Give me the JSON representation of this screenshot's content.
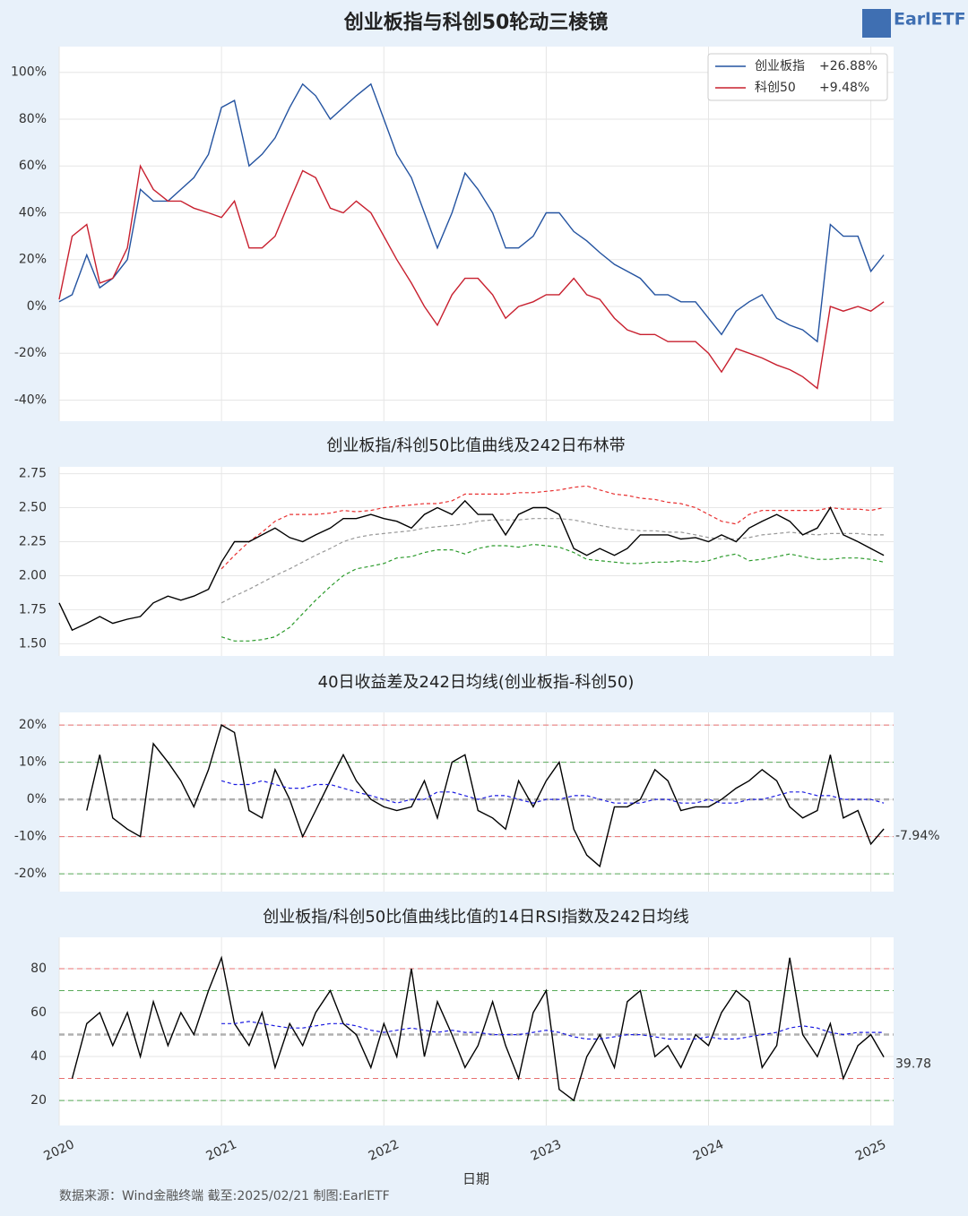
{
  "title": "创业板指与科创50轮动三棱镜",
  "logo": "EarlETF",
  "x_label": "日期",
  "footer": "数据来源：Wind金融终端 截至:2025/02/21 制图:EarlETF",
  "chart_data": [
    {
      "type": "line",
      "xlim": [
        2020,
        2025.14
      ],
      "ylim": [
        -49,
        111
      ],
      "xticks": [
        2020,
        2021,
        2022,
        2023,
        2024,
        2025
      ],
      "yticks": [
        {
          "value": 100,
          "label": "100%"
        },
        {
          "value": 80,
          "label": "80%"
        },
        {
          "value": 60,
          "label": "60%"
        },
        {
          "value": 40,
          "label": "40%"
        },
        {
          "value": 20,
          "label": "20%"
        },
        {
          "value": 0,
          "label": "0%"
        },
        {
          "value": -20,
          "label": "-20%"
        },
        {
          "value": -40,
          "label": "-40%"
        }
      ],
      "grid": true,
      "legend": "upper right",
      "x": [
        2020,
        2020.08,
        2020.17,
        2020.25,
        2020.33,
        2020.42,
        2020.5,
        2020.58,
        2020.67,
        2020.75,
        2020.83,
        2020.92,
        2021,
        2021.08,
        2021.17,
        2021.25,
        2021.33,
        2021.42,
        2021.5,
        2021.58,
        2021.67,
        2021.75,
        2021.83,
        2021.92,
        2022,
        2022.08,
        2022.17,
        2022.25,
        2022.33,
        2022.42,
        2022.5,
        2022.58,
        2022.67,
        2022.75,
        2022.83,
        2022.92,
        2023,
        2023.08,
        2023.17,
        2023.25,
        2023.33,
        2023.42,
        2023.5,
        2023.58,
        2023.67,
        2023.75,
        2023.83,
        2023.92,
        2024,
        2024.08,
        2024.17,
        2024.25,
        2024.33,
        2024.42,
        2024.5,
        2024.58,
        2024.67,
        2024.75,
        2024.83,
        2024.92,
        2025,
        2025.08
      ],
      "series": [
        {
          "name": "创业板指",
          "change_label": "+26.88%",
          "color": "#2453a0",
          "values": [
            2,
            5,
            22,
            8,
            12,
            20,
            50,
            45,
            45,
            50,
            55,
            65,
            85,
            88,
            60,
            65,
            72,
            85,
            95,
            90,
            80,
            85,
            90,
            95,
            80,
            65,
            55,
            40,
            25,
            40,
            57,
            50,
            40,
            25,
            25,
            30,
            40,
            40,
            32,
            28,
            23,
            18,
            15,
            12,
            5,
            5,
            2,
            2,
            -5,
            -12,
            -2,
            2,
            5,
            -5,
            -8,
            -10,
            -15,
            35,
            30,
            30,
            15,
            22
          ]
        },
        {
          "name": "科创50",
          "change_label": "+9.48%",
          "color": "#c8202f",
          "values": [
            3,
            30,
            35,
            10,
            12,
            25,
            60,
            50,
            45,
            45,
            42,
            40,
            38,
            45,
            25,
            25,
            30,
            45,
            58,
            55,
            42,
            40,
            45,
            40,
            30,
            20,
            10,
            0,
            -8,
            5,
            12,
            12,
            5,
            -5,
            0,
            2,
            5,
            5,
            12,
            5,
            3,
            -5,
            -10,
            -12,
            -12,
            -15,
            -15,
            -15,
            -20,
            -28,
            -18,
            -20,
            -22,
            -25,
            -27,
            -30,
            -35,
            0,
            -2,
            0,
            -2,
            2
          ]
        }
      ]
    },
    {
      "type": "line",
      "title": "创业板指/科创50比值曲线及242日布林带",
      "xlim": [
        2020,
        2025.14
      ],
      "ylim": [
        1.41,
        2.8
      ],
      "xticks": [
        2020,
        2021,
        2022,
        2023,
        2024,
        2025
      ],
      "yticks": [
        2.75,
        {
          "value": 2.5,
          "label": "2.50"
        },
        2.25,
        {
          "value": 2,
          "label": "2.00"
        },
        1.75,
        {
          "value": 1.5,
          "label": "1.50"
        }
      ],
      "grid": true,
      "x": [
        2020,
        2020.08,
        2020.17,
        2020.25,
        2020.33,
        2020.42,
        2020.5,
        2020.58,
        2020.67,
        2020.75,
        2020.83,
        2020.92,
        2021,
        2021.08,
        2021.17,
        2021.25,
        2021.33,
        2021.42,
        2021.5,
        2021.58,
        2021.67,
        2021.75,
        2021.83,
        2021.92,
        2022,
        2022.08,
        2022.17,
        2022.25,
        2022.33,
        2022.42,
        2022.5,
        2022.58,
        2022.67,
        2022.75,
        2022.83,
        2022.92,
        2023,
        2023.08,
        2023.17,
        2023.25,
        2023.33,
        2023.42,
        2023.5,
        2023.58,
        2023.67,
        2023.75,
        2023.83,
        2023.92,
        2024,
        2024.08,
        2024.17,
        2024.25,
        2024.33,
        2024.42,
        2024.5,
        2024.58,
        2024.67,
        2024.75,
        2024.83,
        2024.92,
        2025,
        2025.08
      ],
      "series": [
        {
          "color": "#e83030",
          "dashed": true,
          "values": [
            null,
            null,
            null,
            null,
            null,
            null,
            null,
            null,
            null,
            null,
            null,
            null,
            2.05,
            2.15,
            2.25,
            2.32,
            2.4,
            2.45,
            2.45,
            2.45,
            2.46,
            2.48,
            2.47,
            2.48,
            2.5,
            2.51,
            2.52,
            2.53,
            2.53,
            2.55,
            2.6,
            2.6,
            2.6,
            2.6,
            2.61,
            2.61,
            2.62,
            2.63,
            2.65,
            2.66,
            2.63,
            2.6,
            2.59,
            2.57,
            2.56,
            2.54,
            2.53,
            2.5,
            2.45,
            2.4,
            2.38,
            2.45,
            2.48,
            2.48,
            2.48,
            2.48,
            2.48,
            2.5,
            2.49,
            2.49,
            2.48,
            2.5
          ]
        },
        {
          "color": "#999999",
          "dashed": true,
          "values": [
            null,
            null,
            null,
            null,
            null,
            null,
            null,
            null,
            null,
            null,
            null,
            null,
            1.8,
            1.85,
            1.9,
            1.95,
            2,
            2.05,
            2.1,
            2.15,
            2.2,
            2.25,
            2.28,
            2.3,
            2.31,
            2.32,
            2.33,
            2.35,
            2.36,
            2.37,
            2.38,
            2.4,
            2.41,
            2.41,
            2.41,
            2.42,
            2.42,
            2.42,
            2.41,
            2.39,
            2.37,
            2.35,
            2.34,
            2.33,
            2.33,
            2.32,
            2.32,
            2.3,
            2.28,
            2.27,
            2.27,
            2.28,
            2.3,
            2.31,
            2.32,
            2.31,
            2.3,
            2.31,
            2.31,
            2.31,
            2.3,
            2.3
          ]
        },
        {
          "color": "#2a9a2a",
          "dashed": true,
          "values": [
            null,
            null,
            null,
            null,
            null,
            null,
            null,
            null,
            null,
            null,
            null,
            null,
            1.55,
            1.52,
            1.52,
            1.53,
            1.55,
            1.62,
            1.72,
            1.82,
            1.92,
            2,
            2.05,
            2.07,
            2.09,
            2.13,
            2.14,
            2.17,
            2.19,
            2.19,
            2.16,
            2.2,
            2.22,
            2.22,
            2.21,
            2.23,
            2.22,
            2.21,
            2.17,
            2.12,
            2.11,
            2.1,
            2.09,
            2.09,
            2.1,
            2.1,
            2.11,
            2.1,
            2.11,
            2.14,
            2.16,
            2.11,
            2.12,
            2.14,
            2.16,
            2.14,
            2.12,
            2.12,
            2.13,
            2.13,
            2.12,
            2.1
          ]
        },
        {
          "color": "#000000",
          "values": [
            1.8,
            1.6,
            1.65,
            1.7,
            1.65,
            1.68,
            1.7,
            1.8,
            1.85,
            1.82,
            1.85,
            1.9,
            2.1,
            2.25,
            2.25,
            2.3,
            2.35,
            2.28,
            2.25,
            2.3,
            2.35,
            2.42,
            2.42,
            2.45,
            2.42,
            2.4,
            2.35,
            2.45,
            2.5,
            2.45,
            2.55,
            2.45,
            2.45,
            2.3,
            2.45,
            2.5,
            2.5,
            2.45,
            2.2,
            2.15,
            2.2,
            2.15,
            2.2,
            2.3,
            2.3,
            2.3,
            2.27,
            2.28,
            2.25,
            2.3,
            2.25,
            2.35,
            2.4,
            2.45,
            2.4,
            2.3,
            2.35,
            2.5,
            2.3,
            2.25,
            2.2,
            2.15
          ]
        }
      ]
    },
    {
      "type": "line",
      "title": "40日收益差及242日均线(创业板指-科创50)",
      "xlim": [
        2020,
        2025.14
      ],
      "ylim": [
        -24.8,
        23.4
      ],
      "xticks": [
        2020,
        2021,
        2022,
        2023,
        2024,
        2025
      ],
      "yticks": [
        {
          "value": 20,
          "label": "20%"
        },
        {
          "value": 10,
          "label": "10%"
        },
        {
          "value": 0,
          "label": "0%"
        },
        {
          "value": -10,
          "label": "-10%"
        },
        {
          "value": -20,
          "label": "-20%"
        }
      ],
      "grid": true,
      "end_label": "-7.94%",
      "reference_lines": [
        {
          "value": 20,
          "color": "#e87070"
        },
        {
          "value": 10,
          "color": "#5aaa5a"
        },
        {
          "value": 0,
          "color": "#b0b0b0",
          "width": 2.5
        },
        {
          "value": -10,
          "color": "#e87070"
        },
        {
          "value": -20,
          "color": "#5aaa5a"
        }
      ],
      "x": [
        2020,
        2020.08,
        2020.17,
        2020.25,
        2020.33,
        2020.42,
        2020.5,
        2020.58,
        2020.67,
        2020.75,
        2020.83,
        2020.92,
        2021,
        2021.08,
        2021.17,
        2021.25,
        2021.33,
        2021.42,
        2021.5,
        2021.58,
        2021.67,
        2021.75,
        2021.83,
        2021.92,
        2022,
        2022.08,
        2022.17,
        2022.25,
        2022.33,
        2022.42,
        2022.5,
        2022.58,
        2022.67,
        2022.75,
        2022.83,
        2022.92,
        2023,
        2023.08,
        2023.17,
        2023.25,
        2023.33,
        2023.42,
        2023.5,
        2023.58,
        2023.67,
        2023.75,
        2023.83,
        2023.92,
        2024,
        2024.08,
        2024.17,
        2024.25,
        2024.33,
        2024.42,
        2024.5,
        2024.58,
        2024.67,
        2024.75,
        2024.83,
        2024.92,
        2025,
        2025.08
      ],
      "series": [
        {
          "color": "#000000",
          "values": [
            null,
            null,
            -3,
            12,
            -5,
            -8,
            -10,
            15,
            10,
            5,
            -2,
            8,
            20,
            18,
            -3,
            -5,
            8,
            0,
            -10,
            -3,
            5,
            12,
            5,
            0,
            -2,
            -3,
            -2,
            5,
            -5,
            10,
            12,
            -3,
            -5,
            -8,
            5,
            -2,
            5,
            10,
            -8,
            -15,
            -18,
            -2,
            -2,
            0,
            8,
            5,
            -3,
            -2,
            -2,
            0,
            3,
            5,
            8,
            5,
            -2,
            -5,
            -3,
            12,
            -5,
            -3,
            -12,
            -7.94
          ]
        },
        {
          "color": "#1a1ae0",
          "dashed": true,
          "values": [
            null,
            null,
            null,
            null,
            null,
            null,
            null,
            null,
            null,
            null,
            null,
            null,
            5,
            4,
            4,
            5,
            4,
            3,
            3,
            4,
            4,
            3,
            2,
            1,
            0,
            -1,
            0,
            0,
            2,
            2,
            1,
            0,
            1,
            1,
            0,
            -1,
            0,
            0,
            1,
            1,
            0,
            -1,
            -1,
            -1,
            0,
            0,
            -1,
            -1,
            0,
            -1,
            -1,
            0,
            0,
            1,
            2,
            2,
            1,
            1,
            0,
            0,
            0,
            -1
          ]
        }
      ]
    },
    {
      "type": "line",
      "title": "创业板指/科创50比值曲线比值的14日RSI指数及242日均线",
      "xlim": [
        2020,
        2025.14
      ],
      "ylim": [
        8.6,
        94.3
      ],
      "xticks": [
        2020,
        2021,
        2022,
        2023,
        2024,
        2025
      ],
      "yticks": [
        80,
        60,
        40,
        20
      ],
      "grid": true,
      "show_x_labels": true,
      "end_label": "39.78",
      "reference_lines": [
        {
          "value": 80,
          "color": "#e87070"
        },
        {
          "value": 70,
          "color": "#5aaa5a"
        },
        {
          "value": 50,
          "color": "#b0b0b0",
          "width": 2.5
        },
        {
          "value": 30,
          "color": "#e87070"
        },
        {
          "value": 20,
          "color": "#5aaa5a"
        }
      ],
      "x": [
        2020,
        2020.08,
        2020.17,
        2020.25,
        2020.33,
        2020.42,
        2020.5,
        2020.58,
        2020.67,
        2020.75,
        2020.83,
        2020.92,
        2021,
        2021.08,
        2021.17,
        2021.25,
        2021.33,
        2021.42,
        2021.5,
        2021.58,
        2021.67,
        2021.75,
        2021.83,
        2021.92,
        2022,
        2022.08,
        2022.17,
        2022.25,
        2022.33,
        2022.42,
        2022.5,
        2022.58,
        2022.67,
        2022.75,
        2022.83,
        2022.92,
        2023,
        2023.08,
        2023.17,
        2023.25,
        2023.33,
        2023.42,
        2023.5,
        2023.58,
        2023.67,
        2023.75,
        2023.83,
        2023.92,
        2024,
        2024.08,
        2024.17,
        2024.25,
        2024.33,
        2024.42,
        2024.5,
        2024.58,
        2024.67,
        2024.75,
        2024.83,
        2024.92,
        2025,
        2025.08
      ],
      "series": [
        {
          "color": "#000000",
          "values": [
            null,
            30,
            55,
            60,
            45,
            60,
            40,
            65,
            45,
            60,
            50,
            70,
            85,
            55,
            45,
            60,
            35,
            55,
            45,
            60,
            70,
            55,
            50,
            35,
            55,
            40,
            80,
            40,
            65,
            50,
            35,
            45,
            65,
            45,
            30,
            60,
            70,
            25,
            20,
            40,
            50,
            35,
            65,
            70,
            40,
            45,
            35,
            50,
            45,
            60,
            70,
            65,
            35,
            45,
            85,
            50,
            40,
            55,
            30,
            45,
            50,
            39.78
          ]
        },
        {
          "color": "#1a1ae0",
          "dashed": true,
          "values": [
            null,
            null,
            null,
            null,
            null,
            null,
            null,
            null,
            null,
            null,
            null,
            null,
            55,
            55,
            56,
            55,
            54,
            53,
            53,
            54,
            55,
            55,
            54,
            52,
            51,
            52,
            53,
            52,
            51,
            52,
            51,
            51,
            50,
            50,
            50,
            51,
            52,
            51,
            49,
            48,
            48,
            49,
            50,
            50,
            49,
            48,
            48,
            48,
            49,
            48,
            48,
            49,
            50,
            51,
            53,
            54,
            53,
            51,
            50,
            51,
            51,
            51
          ]
        }
      ]
    }
  ]
}
